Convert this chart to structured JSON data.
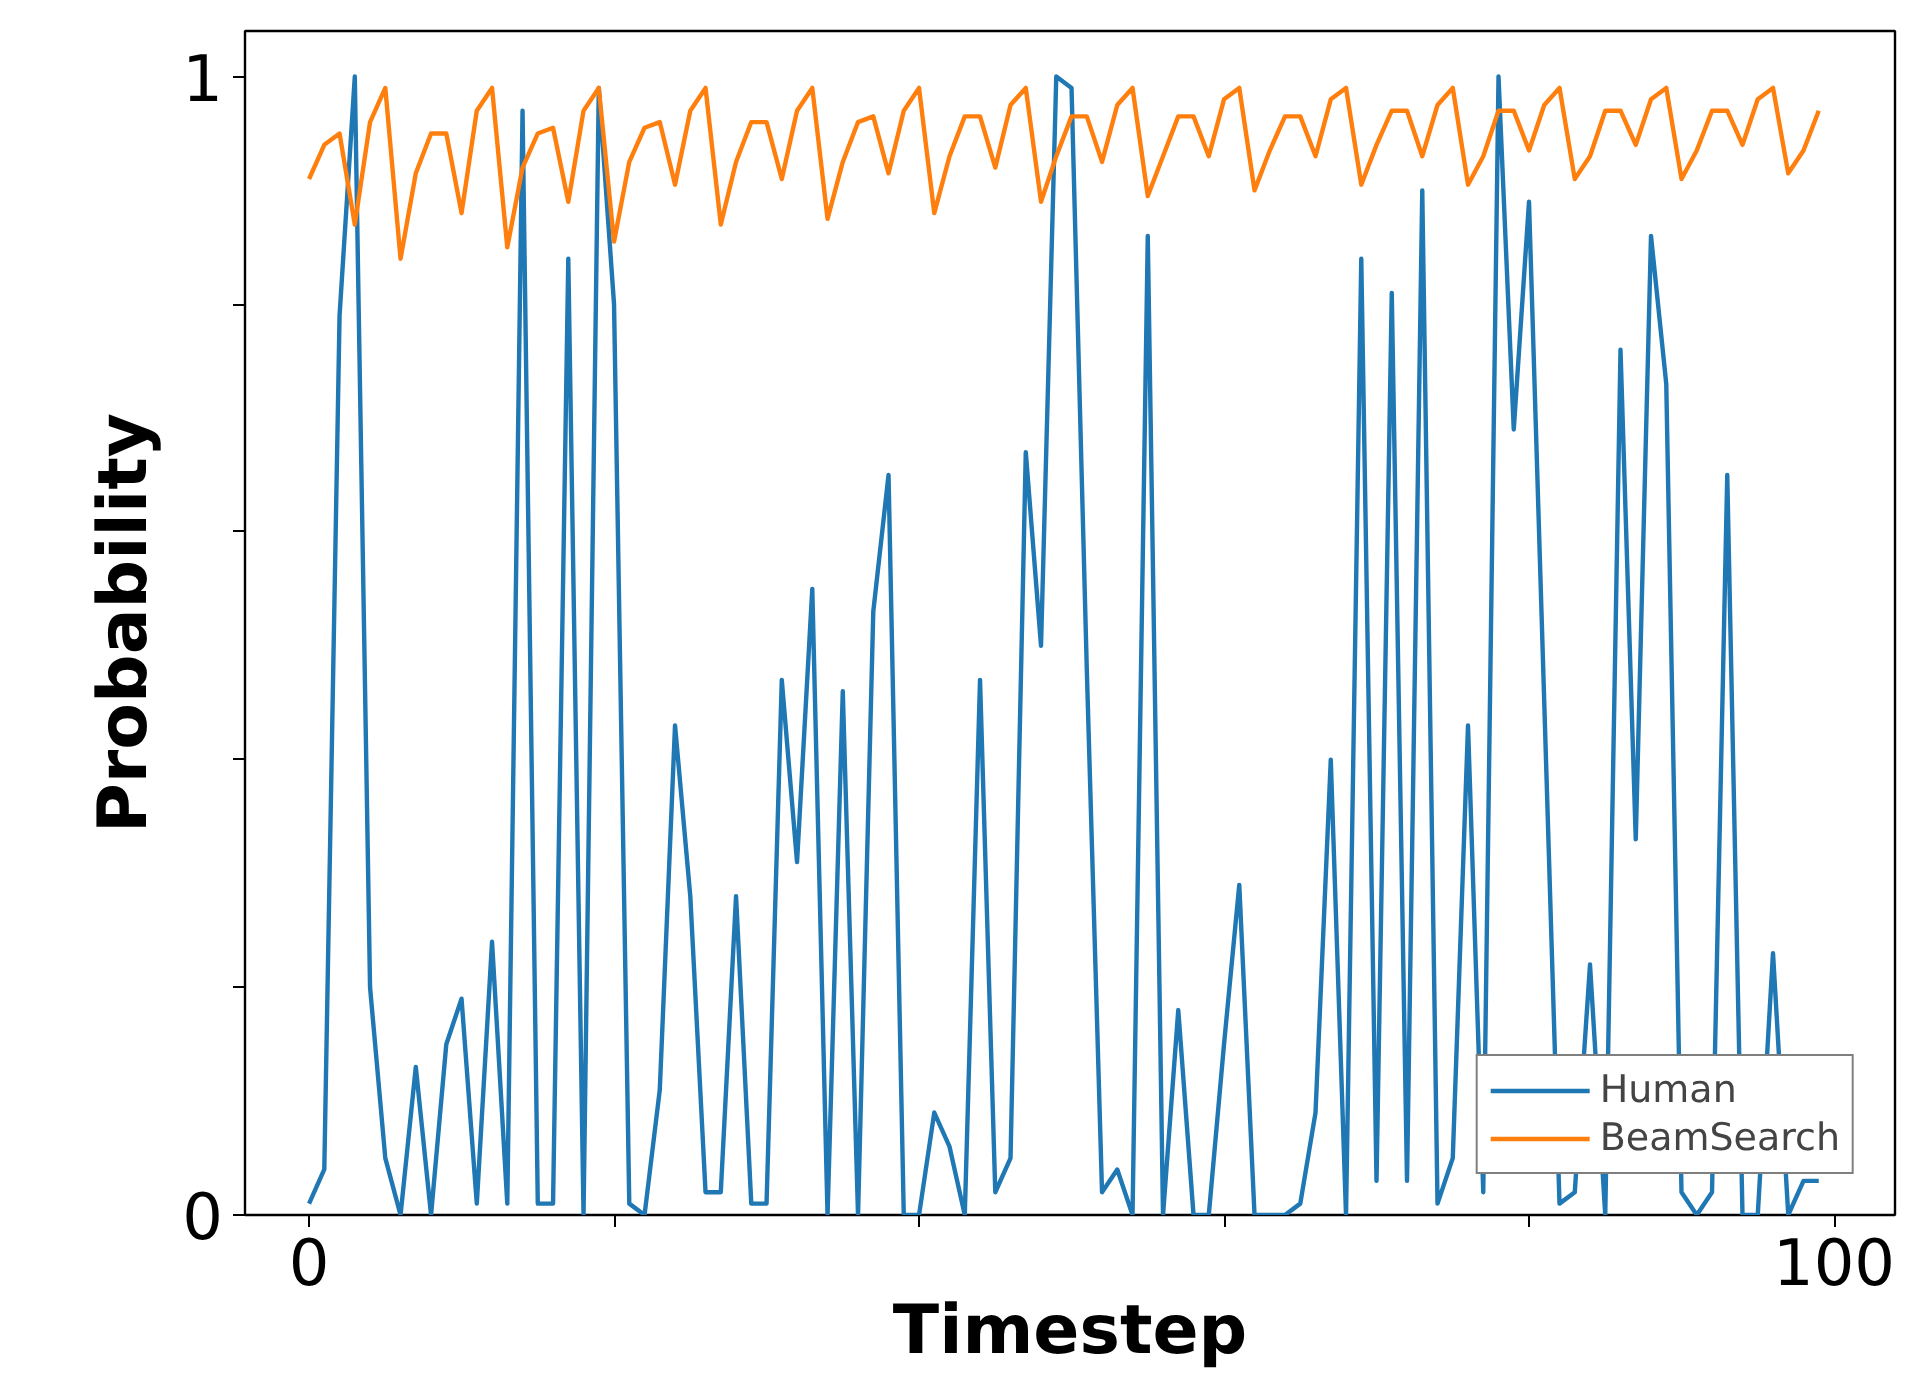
{
  "chart_data": {
    "type": "line",
    "xlabel": "Timestep",
    "ylabel": "Probability",
    "x": [
      0,
      1,
      2,
      3,
      4,
      5,
      6,
      7,
      8,
      9,
      10,
      11,
      12,
      13,
      14,
      15,
      16,
      17,
      18,
      19,
      20,
      21,
      22,
      23,
      24,
      25,
      26,
      27,
      28,
      29,
      30,
      31,
      32,
      33,
      34,
      35,
      36,
      37,
      38,
      39,
      40,
      41,
      42,
      43,
      44,
      45,
      46,
      47,
      48,
      49,
      50,
      51,
      52,
      53,
      54,
      55,
      56,
      57,
      58,
      59,
      60,
      61,
      62,
      63,
      64,
      65,
      66,
      67,
      68,
      69,
      70,
      71,
      72,
      73,
      74,
      75,
      76,
      77,
      78,
      79,
      80,
      81,
      82,
      83,
      84,
      85,
      86,
      87,
      88,
      89,
      90,
      91,
      92,
      93,
      94,
      95,
      96,
      97,
      98,
      99
    ],
    "series": [
      {
        "name": "Human",
        "color": "#1f77b4",
        "values": [
          0.01,
          0.04,
          0.79,
          1.0,
          0.2,
          0.05,
          0.0,
          0.13,
          0.0,
          0.15,
          0.19,
          0.01,
          0.24,
          0.01,
          0.97,
          0.01,
          0.01,
          0.84,
          0.0,
          0.99,
          0.8,
          0.01,
          0.0,
          0.11,
          0.43,
          0.28,
          0.02,
          0.02,
          0.28,
          0.01,
          0.01,
          0.47,
          0.31,
          0.55,
          0.0,
          0.46,
          0.0,
          0.53,
          0.65,
          0.0,
          0.0,
          0.09,
          0.06,
          0.0,
          0.47,
          0.02,
          0.05,
          0.67,
          0.5,
          1.0,
          0.99,
          0.48,
          0.02,
          0.04,
          0.0,
          0.86,
          0.0,
          0.18,
          0.0,
          0.0,
          0.15,
          0.29,
          0.0,
          0.0,
          0.0,
          0.01,
          0.09,
          0.4,
          0.0,
          0.84,
          0.03,
          0.81,
          0.03,
          0.9,
          0.01,
          0.05,
          0.43,
          0.02,
          1.0,
          0.69,
          0.89,
          0.45,
          0.01,
          0.02,
          0.22,
          0.0,
          0.76,
          0.33,
          0.86,
          0.73,
          0.02,
          0.0,
          0.02,
          0.65,
          0.0,
          0.0,
          0.23,
          0.0,
          0.03,
          0.03
        ]
      },
      {
        "name": "BeamSearch",
        "color": "#ff7f0e",
        "values": [
          0.91,
          0.94,
          0.95,
          0.87,
          0.96,
          0.99,
          0.84,
          0.915,
          0.95,
          0.95,
          0.88,
          0.97,
          0.99,
          0.85,
          0.92,
          0.95,
          0.955,
          0.89,
          0.97,
          0.99,
          0.855,
          0.925,
          0.955,
          0.96,
          0.905,
          0.97,
          0.99,
          0.87,
          0.925,
          0.96,
          0.96,
          0.91,
          0.97,
          0.99,
          0.875,
          0.925,
          0.96,
          0.965,
          0.915,
          0.97,
          0.99,
          0.88,
          0.93,
          0.965,
          0.965,
          0.92,
          0.975,
          0.99,
          0.89,
          0.93,
          0.965,
          0.965,
          0.925,
          0.975,
          0.99,
          0.895,
          0.93,
          0.965,
          0.965,
          0.93,
          0.98,
          0.99,
          0.9,
          0.935,
          0.965,
          0.965,
          0.93,
          0.98,
          0.99,
          0.905,
          0.94,
          0.97,
          0.97,
          0.93,
          0.975,
          0.99,
          0.905,
          0.93,
          0.97,
          0.97,
          0.935,
          0.975,
          0.99,
          0.91,
          0.93,
          0.97,
          0.97,
          0.94,
          0.98,
          0.99,
          0.91,
          0.935,
          0.97,
          0.97,
          0.94,
          0.98,
          0.99,
          0.915,
          0.935,
          0.97
        ]
      }
    ],
    "xlim": [
      -4.2,
      104
    ],
    "ylim": [
      0,
      1.04
    ],
    "xticks": [
      0,
      {
        "value": 20,
        "label": null
      },
      {
        "value": 40,
        "label": null
      },
      {
        "value": 60,
        "label": null
      },
      {
        "value": 80,
        "label": null
      },
      100
    ],
    "yticks": [
      0,
      {
        "value": 0.2,
        "label": null
      },
      {
        "value": 0.4,
        "label": null
      },
      {
        "value": 0.6,
        "label": null
      },
      {
        "value": 0.8,
        "label": null
      },
      1
    ],
    "grid": false,
    "legend": "bottom right",
    "marker": "none",
    "line_style": "solid"
  }
}
